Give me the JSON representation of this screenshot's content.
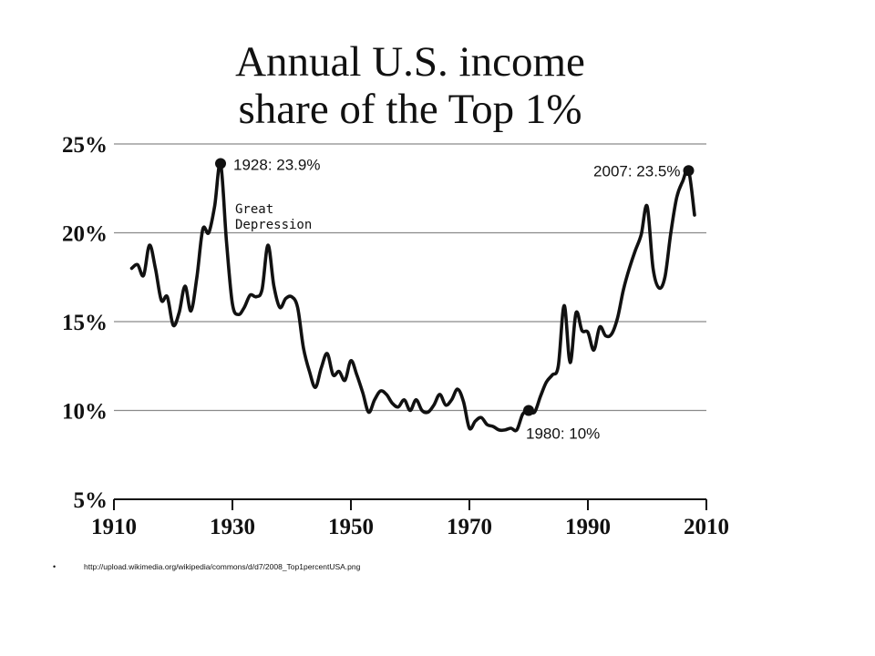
{
  "chart_data": {
    "type": "line",
    "title_lines": [
      "Annual U.S. income",
      "share of the Top 1%"
    ],
    "xlabel": "",
    "ylabel": "",
    "xlim": [
      1910,
      2010
    ],
    "ylim": [
      5,
      25
    ],
    "x_ticks": [
      1910,
      1930,
      1950,
      1970,
      1990,
      2010
    ],
    "x_tick_labels": [
      "1910",
      "1930",
      "1950",
      "1970",
      "1990",
      "2010"
    ],
    "y_ticks": [
      5,
      10,
      15,
      20,
      25
    ],
    "y_tick_labels": [
      "5%",
      "10%",
      "15%",
      "20%",
      "25%"
    ],
    "grid": "horizontal",
    "series": [
      {
        "x": [
          1913,
          1914,
          1915,
          1916,
          1917,
          1918,
          1919,
          1920,
          1921,
          1922,
          1923,
          1924,
          1925,
          1926,
          1927,
          1928,
          1929,
          1930,
          1931,
          1932,
          1933,
          1934,
          1935,
          1936,
          1937,
          1938,
          1939,
          1940,
          1941,
          1942,
          1943,
          1944,
          1945,
          1946,
          1947,
          1948,
          1949,
          1950,
          1951,
          1952,
          1953,
          1954,
          1955,
          1956,
          1957,
          1958,
          1959,
          1960,
          1961,
          1962,
          1963,
          1964,
          1965,
          1966,
          1967,
          1968,
          1969,
          1970,
          1971,
          1972,
          1973,
          1974,
          1975,
          1976,
          1977,
          1978,
          1979,
          1980,
          1981,
          1982,
          1983,
          1984,
          1985,
          1986,
          1987,
          1988,
          1989,
          1990,
          1991,
          1992,
          1993,
          1994,
          1995,
          1996,
          1997,
          1998,
          1999,
          2000,
          2001,
          2002,
          2003,
          2004,
          2005,
          2006,
          2007,
          2008
        ],
        "values": [
          18.0,
          18.2,
          17.6,
          19.3,
          18.0,
          16.2,
          16.4,
          14.8,
          15.5,
          17.0,
          15.6,
          17.5,
          20.2,
          20.0,
          21.5,
          23.9,
          19.5,
          16.0,
          15.4,
          15.8,
          16.5,
          16.4,
          16.8,
          19.3,
          17.0,
          15.8,
          16.3,
          16.4,
          15.8,
          13.5,
          12.2,
          11.3,
          12.4,
          13.2,
          12.0,
          12.2,
          11.7,
          12.8,
          12.0,
          11.0,
          9.9,
          10.6,
          11.1,
          10.9,
          10.4,
          10.2,
          10.6,
          10.0,
          10.6,
          10.0,
          9.9,
          10.3,
          10.9,
          10.3,
          10.6,
          11.2,
          10.5,
          9.0,
          9.4,
          9.6,
          9.2,
          9.1,
          8.9,
          8.9,
          9.0,
          8.9,
          9.8,
          10.0,
          9.9,
          10.8,
          11.6,
          12.0,
          12.5,
          15.9,
          12.7,
          15.5,
          14.5,
          14.4,
          13.4,
          14.7,
          14.2,
          14.3,
          15.2,
          16.8,
          18.0,
          19.0,
          19.9,
          21.5,
          18.0,
          16.9,
          17.5,
          20.0,
          22.0,
          22.9,
          23.5,
          21.0
        ]
      }
    ],
    "annotations": [
      {
        "x": 1928,
        "y": 23.9,
        "label": "1928: 23.9%"
      },
      {
        "x": 2007,
        "y": 23.5,
        "label": "2007: 23.5%"
      },
      {
        "x": 1980,
        "y": 10.0,
        "label": "1980: 10%"
      }
    ],
    "event_label_lines": [
      "Great",
      "Depression"
    ]
  },
  "footer": {
    "bullet": "•",
    "source_url": "http://upload.wikimedia.org/wikipedia/commons/d/d7/2008_Top1percentUSA.png"
  }
}
